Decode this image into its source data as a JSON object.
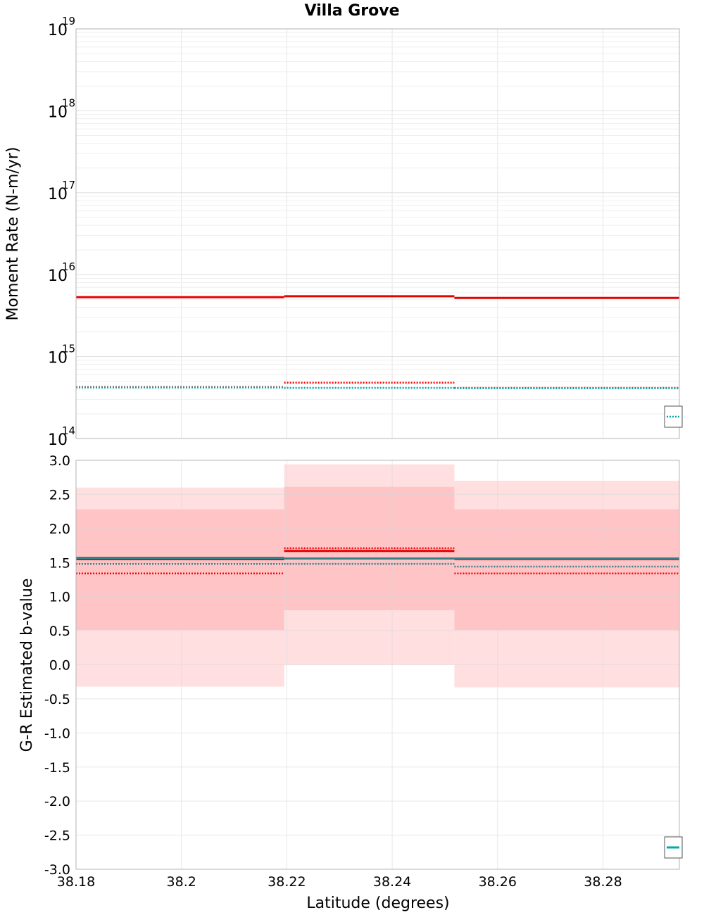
{
  "title": "Villa Grove",
  "xlabel": "Latitude (degrees)",
  "chart_data": [
    {
      "type": "line",
      "ylabel": "Moment Rate (N-m/yr)",
      "yscale": "log",
      "ylim": [
        100000000000000.0,
        1e+19
      ],
      "xlim": [
        38.18,
        38.2945
      ],
      "grid": true,
      "legend_placement": "bottom-right",
      "y_ticks": [
        {
          "exp": 14,
          "label_base": "10",
          "label_exp": "14"
        },
        {
          "exp": 15,
          "label_base": "10",
          "label_exp": "15"
        },
        {
          "exp": 16,
          "label_base": "10",
          "label_exp": "16"
        },
        {
          "exp": 17,
          "label_base": "10",
          "label_exp": "17"
        },
        {
          "exp": 18,
          "label_base": "10",
          "label_exp": "18"
        },
        {
          "exp": 19,
          "label_base": "10",
          "label_exp": "19"
        }
      ],
      "series": [
        {
          "style": "solid",
          "color": "#e60000",
          "segments": [
            {
              "x0": 38.18,
              "x1": 38.2195,
              "y": 5300000000000000.0
            },
            {
              "x0": 38.2195,
              "x1": 38.2518,
              "y": 5450000000000000.0
            },
            {
              "x0": 38.2518,
              "x1": 38.2945,
              "y": 5200000000000000.0
            }
          ]
        },
        {
          "style": "dotted",
          "color": "#ff0000",
          "segments": [
            {
              "x0": 38.18,
              "x1": 38.2195,
              "y": 425000000000000.0
            },
            {
              "x0": 38.2195,
              "x1": 38.2518,
              "y": 480000000000000.0
            },
            {
              "x0": 38.2518,
              "x1": 38.2945,
              "y": 415000000000000.0
            }
          ]
        },
        {
          "style": "dotted",
          "color": "#00aaaa",
          "segments": [
            {
              "x0": 38.18,
              "x1": 38.2195,
              "y": 420000000000000.0
            },
            {
              "x0": 38.2195,
              "x1": 38.2518,
              "y": 415000000000000.0
            },
            {
              "x0": 38.2518,
              "x1": 38.2945,
              "y": 410000000000000.0
            }
          ]
        }
      ]
    },
    {
      "type": "line",
      "ylabel": "G-R Estimated b-value",
      "ylim": [
        -3.0,
        3.0
      ],
      "xlim": [
        38.18,
        38.2945
      ],
      "grid": true,
      "legend_placement": "bottom-right",
      "y_ticks": [
        "-3.0",
        "-2.5",
        "-2.0",
        "-1.5",
        "-1.0",
        "-0.5",
        "0.0",
        "0.5",
        "1.0",
        "1.5",
        "2.0",
        "2.5",
        "3.0"
      ],
      "x_ticks": [
        "38.18",
        "38.2",
        "38.22",
        "38.24",
        "38.26",
        "38.28"
      ],
      "bands": [
        {
          "level": "outer",
          "color": "#ffdfe0",
          "segments": [
            {
              "x0": 38.18,
              "x1": 38.2195,
              "lo": -0.32,
              "hi": 2.6
            },
            {
              "x0": 38.2195,
              "x1": 38.2518,
              "lo": 0.0,
              "hi": 2.94
            },
            {
              "x0": 38.2518,
              "x1": 38.2945,
              "lo": -0.33,
              "hi": 2.7
            }
          ]
        },
        {
          "level": "inner",
          "color": "#ffc4c6",
          "segments": [
            {
              "x0": 38.18,
              "x1": 38.2195,
              "lo": 0.51,
              "hi": 2.28
            },
            {
              "x0": 38.2195,
              "x1": 38.2518,
              "lo": 0.8,
              "hi": 2.61
            },
            {
              "x0": 38.2518,
              "x1": 38.2945,
              "lo": 0.51,
              "hi": 2.28
            }
          ]
        }
      ],
      "series": [
        {
          "style": "solid",
          "color": "#e60000",
          "segments": [
            {
              "x0": 38.18,
              "x1": 38.2195,
              "y": 1.55
            },
            {
              "x0": 38.2195,
              "x1": 38.2518,
              "y": 1.67
            },
            {
              "x0": 38.2518,
              "x1": 38.2945,
              "y": 1.55
            }
          ]
        },
        {
          "style": "dotted",
          "color": "#ff0000",
          "segments": [
            {
              "x0": 38.18,
              "x1": 38.2195,
              "y": 1.34
            },
            {
              "x0": 38.2195,
              "x1": 38.2518,
              "y": 1.71
            },
            {
              "x0": 38.2518,
              "x1": 38.2945,
              "y": 1.34
            }
          ]
        },
        {
          "style": "solid",
          "color": "#3a7f86",
          "segments": [
            {
              "x0": 38.18,
              "x1": 38.2195,
              "y": 1.57
            },
            {
              "x0": 38.2195,
              "x1": 38.2518,
              "y": 1.56
            },
            {
              "x0": 38.2518,
              "x1": 38.2945,
              "y": 1.56
            }
          ]
        },
        {
          "style": "dotted",
          "color": "#3a7f86",
          "segments": [
            {
              "x0": 38.18,
              "x1": 38.2195,
              "y": 1.48
            },
            {
              "x0": 38.2195,
              "x1": 38.2518,
              "y": 1.48
            },
            {
              "x0": 38.2518,
              "x1": 38.2945,
              "y": 1.44
            }
          ]
        }
      ]
    }
  ]
}
